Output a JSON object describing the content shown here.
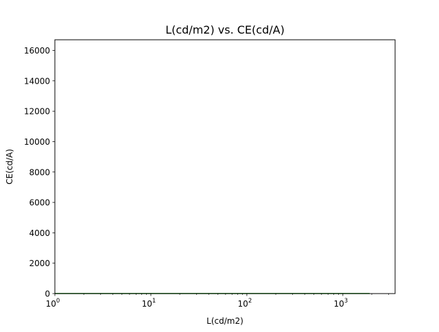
{
  "chart_data": {
    "type": "line",
    "title": "L(cd/m2) vs. CE(cd/A)",
    "xlabel": "L(cd/m2)",
    "ylabel": "CE(cd/A)",
    "xscale": "log",
    "xlim": [
      1,
      3500
    ],
    "ylim": [
      0,
      16700
    ],
    "grid": false,
    "legend": "none",
    "x_ticks": [
      {
        "base": "10",
        "exp": "0",
        "value": 1
      },
      {
        "base": "10",
        "exp": "1",
        "value": 10
      },
      {
        "base": "10",
        "exp": "2",
        "value": 100
      },
      {
        "base": "10",
        "exp": "3",
        "value": 1000
      }
    ],
    "y_ticks": [
      {
        "label": "0",
        "value": 0
      },
      {
        "label": "2000",
        "value": 2000
      },
      {
        "label": "4000",
        "value": 4000
      },
      {
        "label": "6000",
        "value": 6000
      },
      {
        "label": "8000",
        "value": 8000
      },
      {
        "label": "10000",
        "value": 10000
      },
      {
        "label": "12000",
        "value": 12000
      },
      {
        "label": "14000",
        "value": 14000
      },
      {
        "label": "16000",
        "value": 16000
      }
    ],
    "series": [
      {
        "color": "#008000",
        "x": [
          1,
          2,
          5,
          10,
          20,
          50,
          100,
          200,
          500,
          1000,
          1900
        ],
        "y": [
          5,
          5,
          5,
          5,
          5,
          5,
          5,
          5,
          5,
          5,
          5
        ]
      }
    ]
  }
}
